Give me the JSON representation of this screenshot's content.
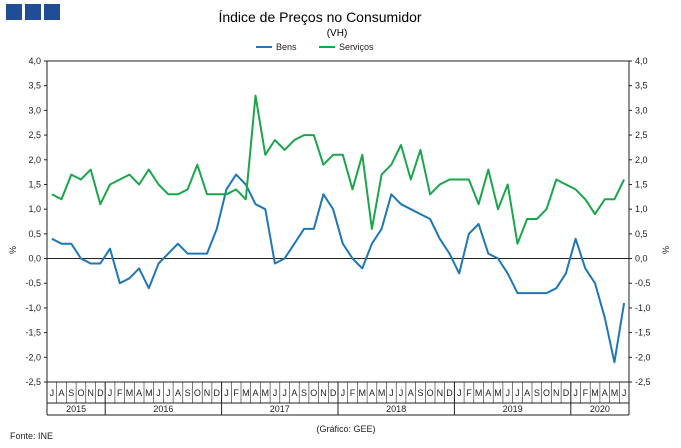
{
  "header": {
    "title": "Índice de Preços no Consumidor",
    "subtitle": "(VH)"
  },
  "footer": {
    "source": "Fonte: INE",
    "credit": "(Gráfico: GEE)"
  },
  "colors": {
    "logo": "#1f4e96",
    "bens": "#1f77b4",
    "servicos": "#1aa64a"
  },
  "chart_data": {
    "type": "line",
    "title": "Índice de Preços no Consumidor",
    "subtitle": "(VH)",
    "ylabel_left": "%",
    "ylabel_right": "%",
    "ylim": [
      -2.5,
      4.0
    ],
    "yticks": [
      "4,0",
      "3,5",
      "3,0",
      "2,5",
      "2,0",
      "1,5",
      "1,0",
      "0,5",
      "0,0",
      "-0,5",
      "-1,0",
      "-1,5",
      "-2,0",
      "-2,5"
    ],
    "legend_position": "top-center",
    "grid": false,
    "month_labels": [
      "J",
      "A",
      "S",
      "O",
      "N",
      "D",
      "J",
      "F",
      "M",
      "A",
      "M",
      "J",
      "J",
      "A",
      "S",
      "O",
      "N",
      "D",
      "J",
      "F",
      "M",
      "A",
      "M",
      "J",
      "J",
      "A",
      "S",
      "O",
      "N",
      "D",
      "J",
      "F",
      "M",
      "A",
      "M",
      "J",
      "J",
      "A",
      "S",
      "O",
      "N",
      "D",
      "J",
      "F",
      "M",
      "A",
      "M",
      "J",
      "J",
      "A",
      "S",
      "O",
      "N",
      "D",
      "J",
      "F",
      "M",
      "A",
      "M",
      "J"
    ],
    "years": [
      {
        "label": "2015",
        "start": 0,
        "count": 6
      },
      {
        "label": "2016",
        "start": 6,
        "count": 12
      },
      {
        "label": "2017",
        "start": 18,
        "count": 12
      },
      {
        "label": "2018",
        "start": 30,
        "count": 12
      },
      {
        "label": "2019",
        "start": 42,
        "count": 12
      },
      {
        "label": "2020",
        "start": 54,
        "count": 6
      }
    ],
    "series": [
      {
        "name": "Bens",
        "color": "#1f77b4",
        "values": [
          0.4,
          0.3,
          0.3,
          0.0,
          -0.1,
          -0.1,
          0.2,
          -0.5,
          -0.4,
          -0.2,
          -0.6,
          -0.1,
          0.1,
          0.3,
          0.1,
          0.1,
          0.1,
          0.6,
          1.4,
          1.7,
          1.5,
          1.1,
          1.0,
          -0.1,
          0.0,
          0.3,
          0.6,
          0.6,
          1.3,
          1.0,
          0.3,
          0.0,
          -0.2,
          0.3,
          0.6,
          1.3,
          1.1,
          1.0,
          0.9,
          0.8,
          0.4,
          0.1,
          -0.3,
          0.5,
          0.7,
          0.1,
          0.0,
          -0.3,
          -0.7,
          -0.7,
          -0.7,
          -0.7,
          -0.6,
          -0.3,
          0.4,
          -0.2,
          -0.5,
          -1.2,
          -2.1,
          -0.9
        ]
      },
      {
        "name": "Serviços",
        "color": "#1aa64a",
        "values": [
          1.3,
          1.2,
          1.7,
          1.6,
          1.8,
          1.1,
          1.5,
          1.6,
          1.7,
          1.5,
          1.8,
          1.5,
          1.3,
          1.3,
          1.4,
          1.9,
          1.3,
          1.3,
          1.3,
          1.4,
          1.2,
          3.3,
          2.1,
          2.4,
          2.2,
          2.4,
          2.5,
          2.5,
          1.9,
          2.1,
          2.1,
          1.4,
          2.1,
          0.6,
          1.7,
          1.9,
          2.3,
          1.6,
          2.2,
          1.3,
          1.5,
          1.6,
          1.6,
          1.6,
          1.1,
          1.8,
          1.0,
          1.5,
          0.3,
          0.8,
          0.8,
          1.0,
          1.6,
          1.5,
          1.4,
          1.2,
          0.9,
          1.2,
          1.2,
          1.6
        ]
      }
    ]
  }
}
